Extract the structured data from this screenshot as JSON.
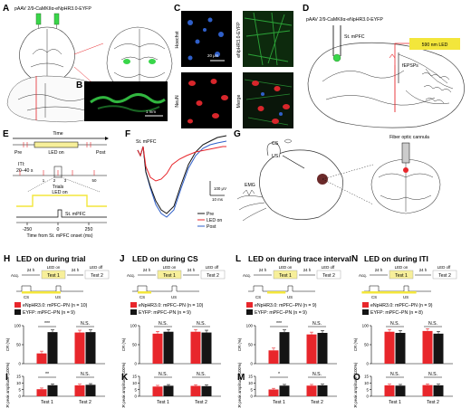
{
  "colors": {
    "red": "#e8262b",
    "black": "#141414",
    "yellow": "#f3e63b",
    "yellowBox": "#f7ef9a",
    "green": "#39d64a",
    "blue": "#2f5fc9",
    "navy": "#1b2a88"
  },
  "panelA": {
    "label": "A",
    "virus": "pAAV 2/9-CaMKIIα-eNpHR3.0-EYFP"
  },
  "panelB": {
    "label": "B",
    "scale": "1 mm"
  },
  "panelC": {
    "label": "C",
    "tiles": [
      "Hoechst",
      "eNpHR3.0-EYFP",
      "NeuN",
      "Merge"
    ],
    "scale": "20 μm"
  },
  "panelD": {
    "label": "D",
    "virus": "pAAV 2/9-CaMKIIα-eNpHR3.0-EYFP",
    "site": "St. mPFC",
    "led": "590 nm LED",
    "rec": "fEPSPs"
  },
  "panelE": {
    "label": "E",
    "time": "Time",
    "pre": "Pre",
    "ledon": "LED on",
    "post": "Post",
    "iti": "ITI:",
    "iti2": "20–40 s",
    "trials": "Trials",
    "t1": "1",
    "t2": "2",
    "t3": "3",
    "t50": "50",
    "ledon2": "LED on",
    "stim": "St. mPFC",
    "ticks": [
      "-250",
      "0",
      "250"
    ],
    "xlabel": "Time from St. mPFC onset (ms)"
  },
  "panelF": {
    "label": "F",
    "site": "St. mPFC",
    "sy": "100 μV",
    "sx": "10 ms",
    "legend": [
      "Pre",
      "LED on",
      "Post"
    ]
  },
  "panelG": {
    "label": "G",
    "cs": "CS",
    "us": "US",
    "emg": "EMG",
    "cannula": "Fiber optic cannula"
  },
  "ylabCR": "CR (%)",
  "ylabAmp": "CR peak amplitude (100%)",
  "xTests": [
    "Test 1",
    "Test 2"
  ],
  "protocol": {
    "acq": "Acq.",
    "h24": "24 h",
    "ledon": "LED on",
    "ledoff": "LED off",
    "test1": "Test 1",
    "test2": "Test 2",
    "cs": "CS",
    "us": "US"
  },
  "chart_data": [
    {
      "panel": "H",
      "type": "bar",
      "title": "LED on during trial",
      "legend": [
        "eNpHR3.0: mPFC–PN (n = 10)",
        "EYFP: mPFC–PN (n = 9)"
      ],
      "ylabel": "CR (%)",
      "ylim": [
        0,
        100
      ],
      "categories": [
        "Test 1",
        "Test 2"
      ],
      "series": [
        {
          "name": "eNpHR3.0: mPFC–PN (n = 10)",
          "values": [
            27,
            82
          ]
        },
        {
          "name": "EYFP: mPFC–PN (n = 9)",
          "values": [
            83,
            83
          ]
        }
      ],
      "sig": [
        "***",
        "N.S."
      ]
    },
    {
      "panel": "J",
      "type": "bar",
      "title": "LED on during CS",
      "legend": [
        "eNpHR3.0: mPFC–PN (n = 10)",
        "EYFP: mPFC–PN (n = 9)"
      ],
      "ylabel": "CR (%)",
      "ylim": [
        0,
        100
      ],
      "categories": [
        "Test 1",
        "Test 2"
      ],
      "series": [
        {
          "name": "eNpHR3.0: mPFC–PN (n = 10)",
          "values": [
            79,
            84
          ]
        },
        {
          "name": "EYFP: mPFC–PN (n = 9)",
          "values": [
            84,
            82
          ]
        }
      ],
      "sig": [
        "N.S.",
        "N.S."
      ]
    },
    {
      "panel": "L",
      "type": "bar",
      "title": "LED on during trace interval",
      "legend": [
        "eNpHR3.0: mPFC–PN (n = 9)",
        "EYFP: mPFC–PN (n = 9)"
      ],
      "ylabel": "CR (%)",
      "ylim": [
        0,
        100
      ],
      "categories": [
        "Test 1",
        "Test 2"
      ],
      "series": [
        {
          "name": "eNpHR3.0: mPFC–PN (n = 9)",
          "values": [
            35,
            77
          ]
        },
        {
          "name": "EYFP: mPFC–PN (n = 9)",
          "values": [
            83,
            81
          ]
        }
      ],
      "sig": [
        "***",
        "N.S."
      ]
    },
    {
      "panel": "N",
      "type": "bar",
      "title": "LED on during ITI",
      "legend": [
        "eNpHR3.0: mPFC–PN (n = 9)",
        "EYFP: mPFC–PN (n = 8)"
      ],
      "ylabel": "CR (%)",
      "ylim": [
        0,
        100
      ],
      "categories": [
        "Test 1",
        "Test 2"
      ],
      "series": [
        {
          "name": "eNpHR3.0: mPFC–PN (n = 9)",
          "values": [
            84,
            86
          ]
        },
        {
          "name": "EYFP: mPFC–PN (n = 8)",
          "values": [
            81,
            79
          ]
        }
      ],
      "sig": [
        "N.S.",
        "N.S."
      ]
    },
    {
      "panel": "I",
      "type": "bar",
      "ylabel": "CR peak amplitude (100%)",
      "ylim": [
        0,
        15
      ],
      "categories": [
        "Test 1",
        "Test 2"
      ],
      "series": [
        {
          "values": [
            5.3,
            8.2
          ]
        },
        {
          "values": [
            8.3,
            8.6
          ]
        }
      ],
      "sig": [
        "**",
        "N.S."
      ]
    },
    {
      "panel": "K",
      "type": "bar",
      "ylabel": "CR peak amplitude (100%)",
      "ylim": [
        0,
        15
      ],
      "categories": [
        "Test 1",
        "Test 2"
      ],
      "series": [
        {
          "values": [
            7.3,
            7.8
          ]
        },
        {
          "values": [
            7.9,
            7.6
          ]
        }
      ],
      "sig": [
        "N.S.",
        "N.S."
      ]
    },
    {
      "panel": "M",
      "type": "bar",
      "ylabel": "CR peak amplitude (100%)",
      "ylim": [
        0,
        15
      ],
      "categories": [
        "Test 1",
        "Test 2"
      ],
      "series": [
        {
          "values": [
            5.1,
            8.0
          ]
        },
        {
          "values": [
            8.0,
            8.2
          ]
        }
      ],
      "sig": [
        "*",
        "N.S."
      ]
    },
    {
      "panel": "O",
      "type": "bar",
      "ylabel": "CR peak amplitude (100%)",
      "ylim": [
        0,
        15
      ],
      "categories": [
        "Test 1",
        "Test 2"
      ],
      "series": [
        {
          "values": [
            8.2,
            8.4
          ]
        },
        {
          "values": [
            8.0,
            8.2
          ]
        }
      ],
      "sig": [
        "N.S.",
        "N.S."
      ]
    }
  ]
}
